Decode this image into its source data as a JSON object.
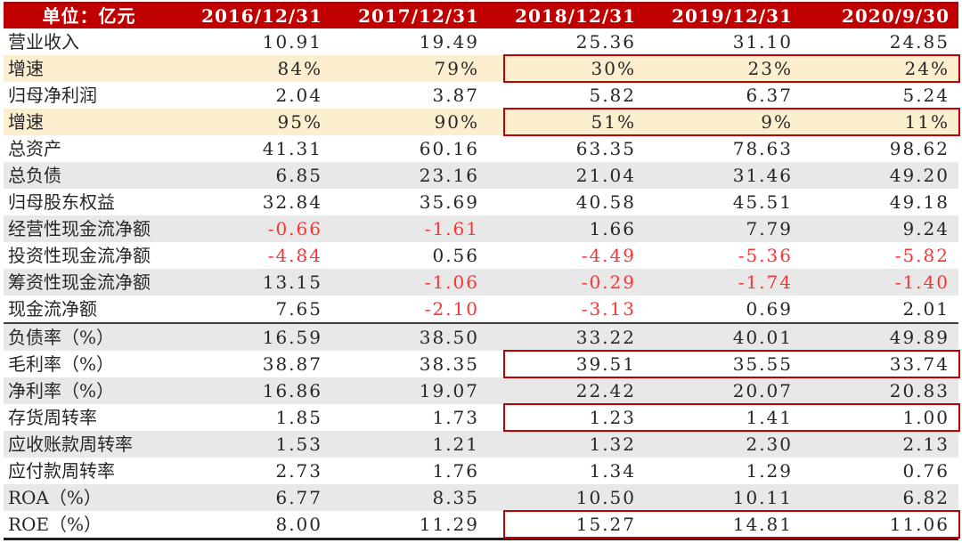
{
  "chart_data": {
    "type": "table",
    "unit_label": "单位：亿元",
    "columns": [
      "2016/12/31",
      "2017/12/31",
      "2018/12/31",
      "2019/12/31",
      "2020/9/30"
    ],
    "rows": [
      {
        "label": "营业收入",
        "values": [
          "10.91",
          "19.49",
          "25.36",
          "31.10",
          "24.85"
        ],
        "bg": "plain",
        "box": false,
        "separator_below": false
      },
      {
        "label": "增速",
        "values": [
          "84%",
          "79%",
          "30%",
          "23%",
          "24%"
        ],
        "bg": "yellow",
        "box": true,
        "separator_below": false
      },
      {
        "label": "归母净利润",
        "values": [
          "2.04",
          "3.87",
          "5.82",
          "6.37",
          "5.24"
        ],
        "bg": "plain",
        "box": false,
        "separator_below": false
      },
      {
        "label": "增速",
        "values": [
          "95%",
          "90%",
          "51%",
          "9%",
          "11%"
        ],
        "bg": "yellow",
        "box": true,
        "separator_below": false
      },
      {
        "label": "总资产",
        "values": [
          "41.31",
          "60.16",
          "63.35",
          "78.63",
          "98.62"
        ],
        "bg": "plain",
        "box": false,
        "separator_below": false
      },
      {
        "label": "总负债",
        "values": [
          "6.85",
          "23.16",
          "21.04",
          "31.46",
          "49.20"
        ],
        "bg": "gray",
        "box": false,
        "separator_below": false
      },
      {
        "label": "归母股东权益",
        "values": [
          "32.84",
          "35.69",
          "40.58",
          "45.51",
          "49.18"
        ],
        "bg": "plain",
        "box": false,
        "separator_below": false
      },
      {
        "label": "经营性现金流净额",
        "values": [
          "-0.66",
          "-1.61",
          "1.66",
          "7.79",
          "9.24"
        ],
        "bg": "gray",
        "box": false,
        "separator_below": false
      },
      {
        "label": "投资性现金流净额",
        "values": [
          "-4.84",
          "0.56",
          "-4.49",
          "-5.36",
          "-5.82"
        ],
        "bg": "plain",
        "box": false,
        "separator_below": false
      },
      {
        "label": "筹资性现金流净额",
        "values": [
          "13.15",
          "-1.06",
          "-0.29",
          "-1.74",
          "-1.40"
        ],
        "bg": "gray",
        "box": false,
        "separator_below": false
      },
      {
        "label": "现金流净额",
        "values": [
          "7.65",
          "-2.10",
          "-3.13",
          "0.69",
          "2.01"
        ],
        "bg": "plain",
        "box": false,
        "separator_below": true
      },
      {
        "label": "负债率（%）",
        "values": [
          "16.59",
          "38.50",
          "33.22",
          "40.01",
          "49.89"
        ],
        "bg": "gray",
        "box": false,
        "separator_below": false
      },
      {
        "label": "毛利率（%）",
        "values": [
          "38.87",
          "38.35",
          "39.51",
          "35.55",
          "33.74"
        ],
        "bg": "plain",
        "box": true,
        "separator_below": false
      },
      {
        "label": "净利率（%）",
        "values": [
          "16.86",
          "19.07",
          "22.42",
          "20.07",
          "20.83"
        ],
        "bg": "gray",
        "box": false,
        "separator_below": false
      },
      {
        "label": "存货周转率",
        "values": [
          "1.85",
          "1.73",
          "1.23",
          "1.41",
          "1.00"
        ],
        "bg": "plain",
        "box": true,
        "separator_below": false
      },
      {
        "label": "应收账款周转率",
        "values": [
          "1.53",
          "1.21",
          "1.32",
          "2.30",
          "2.13"
        ],
        "bg": "gray",
        "box": false,
        "separator_below": false
      },
      {
        "label": "应付款周转率",
        "values": [
          "2.73",
          "1.76",
          "1.34",
          "1.29",
          "0.76"
        ],
        "bg": "plain",
        "box": false,
        "separator_below": false
      },
      {
        "label": "ROA（%）",
        "values": [
          "6.77",
          "8.35",
          "10.50",
          "10.11",
          "6.82"
        ],
        "bg": "gray",
        "box": false,
        "separator_below": false
      },
      {
        "label": "ROE（%）",
        "values": [
          "8.00",
          "11.29",
          "15.27",
          "14.81",
          "11.06"
        ],
        "bg": "plain",
        "box": true,
        "separator_below": false
      }
    ],
    "layout": {
      "negative_values_in_red": true,
      "boxed_columns_range": "2018/12/31 to 2020/9/30",
      "stripe_pattern": "alternating white/gray, growth rows highlighted yellow"
    }
  },
  "colors": {
    "header_bg": "#c00000",
    "header_top": "#9a0b0f",
    "highlight_yellow": "#fcefd0",
    "stripe_gray": "#e8e8e8",
    "negative_red": "#fb3333",
    "box_red": "#c00000",
    "text_color": "#262626",
    "separator": "#3f3f3f"
  }
}
